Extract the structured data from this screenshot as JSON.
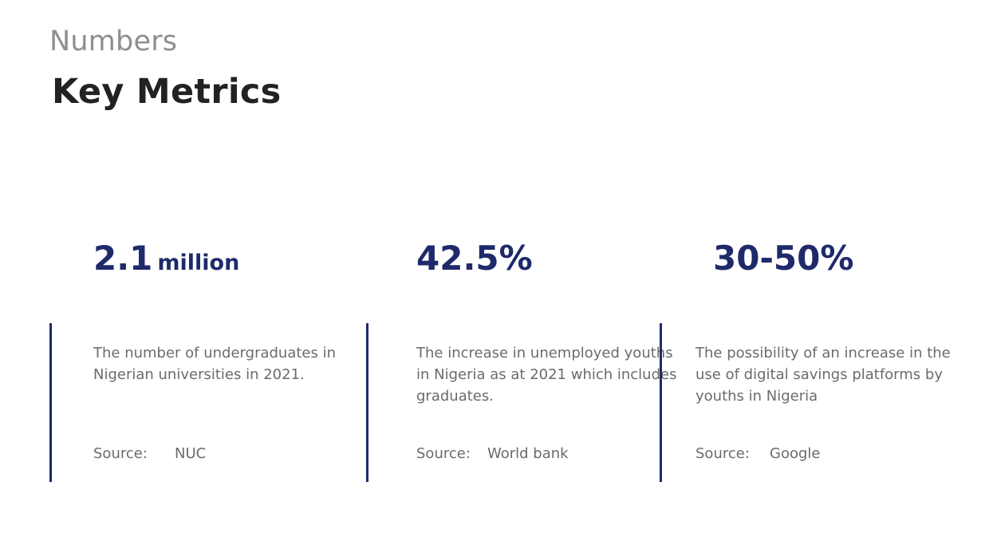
{
  "header": {
    "eyebrow": "Numbers",
    "title": "Key Metrics"
  },
  "metrics": [
    {
      "value": "2.1",
      "unit": "million",
      "description": "The number of undergraduates in Nigerian universities in 2021.",
      "source_label": "Source:",
      "source_value": "NUC"
    },
    {
      "value": "42.5%",
      "unit": "",
      "description": "The increase in unemployed youths in Nigeria as at 2021 which includes graduates.",
      "source_label": "Source:",
      "source_value": "World bank"
    },
    {
      "value": "30-50%",
      "unit": "",
      "description": "The possibility of an increase in the use of digital savings platforms by youths in Nigeria",
      "source_label": "Source:",
      "source_value": "Google"
    }
  ],
  "colors": {
    "accent": "#1f2a6b",
    "heading": "#222222",
    "eyebrow": "#8e8e8e",
    "body": "#6b6b6b"
  }
}
